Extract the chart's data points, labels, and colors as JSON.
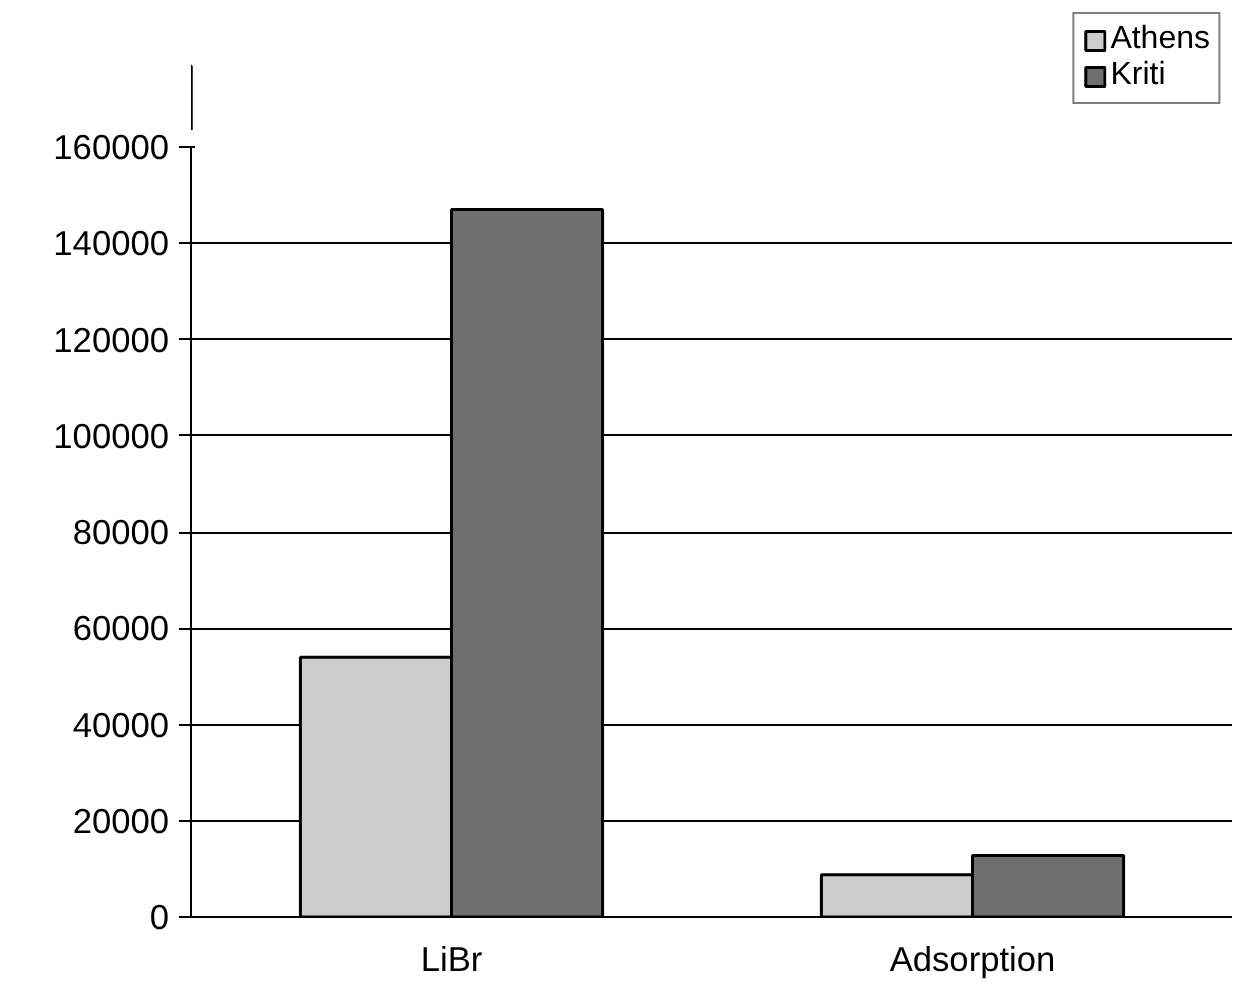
{
  "chart_data": {
    "type": "bar",
    "categories": [
      "LiBr",
      "Adsorption"
    ],
    "series": [
      {
        "name": "Athens",
        "color": "#cccccc",
        "values": [
          54000,
          8800
        ]
      },
      {
        "name": "Kriti",
        "color": "#6e6e6e",
        "values": [
          147000,
          12800
        ]
      }
    ],
    "ylim": [
      0,
      160000
    ],
    "yticks": [
      0,
      20000,
      40000,
      60000,
      80000,
      100000,
      120000,
      140000,
      160000
    ],
    "grid": "y",
    "legend": "top right"
  }
}
